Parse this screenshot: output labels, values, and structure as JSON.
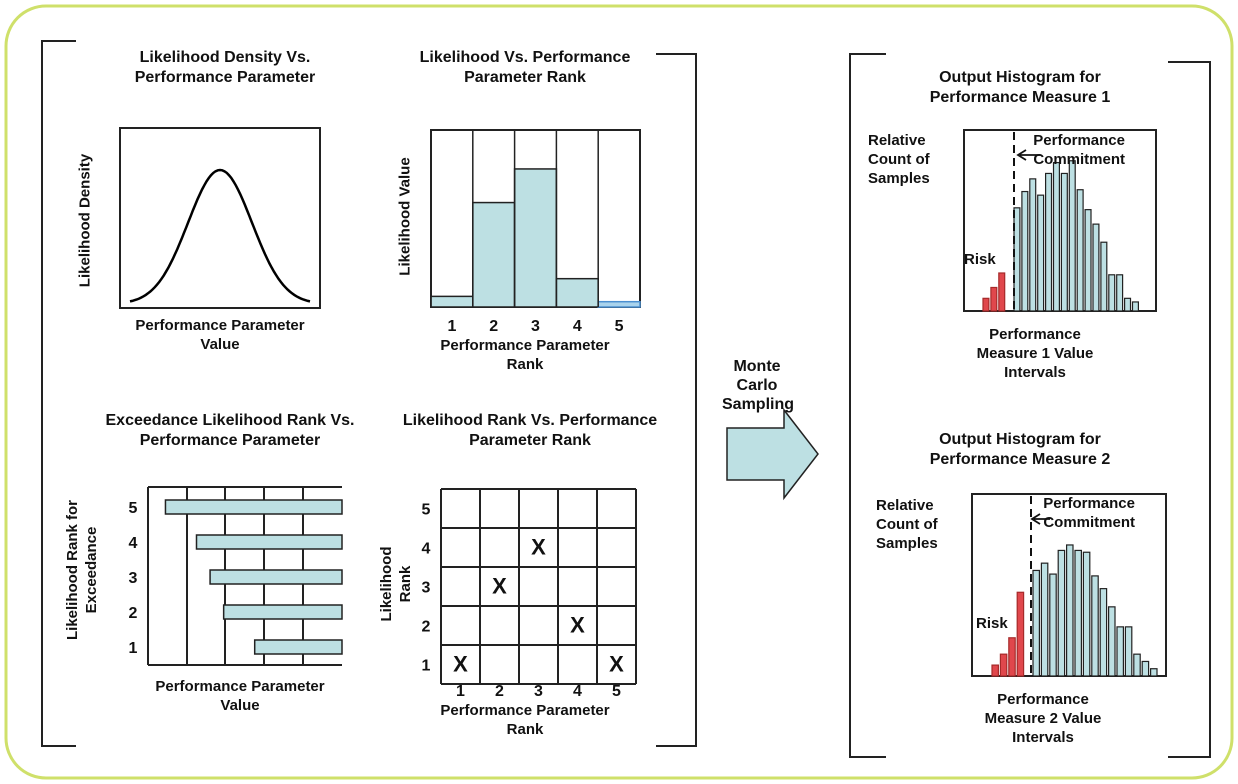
{
  "panels": {
    "density": {
      "title": "Likelihood Density Vs. Performance Parameter",
      "ylabel": "Likelihood  Density",
      "xlabel": "Performance Parameter Value"
    },
    "rank_bar": {
      "title": "Likelihood Vs. Performance Parameter Rank",
      "ylabel": "Likelihood Value",
      "xlabel": "Performance Parameter Rank",
      "ticks": [
        "1",
        "2",
        "3",
        "4",
        "5"
      ]
    },
    "exceedance": {
      "title": "Exceedance Likelihood Rank Vs. Performance Parameter",
      "ylabel": "Likelihood Rank for Exceedance",
      "xlabel": "Performance Parameter Value",
      "ticks": [
        "5",
        "4",
        "3",
        "2",
        "1"
      ]
    },
    "grid": {
      "title": "Likelihood Rank Vs. Performance Parameter Rank",
      "ylabel": "Likelihood Rank",
      "xlabel": "Performance Parameter Rank",
      "xticks": [
        "1",
        "2",
        "3",
        "4",
        "5"
      ],
      "yticks": [
        "5",
        "4",
        "3",
        "2",
        "1"
      ],
      "mark": "X"
    },
    "arrow_label": "Monte Carlo Sampling",
    "hist1": {
      "title": "Output  Histogram for Performance Measure 1",
      "ylabel": "Relative Count of Samples",
      "xlabel": "Performance Measure 1 Value Intervals",
      "risk": "Risk",
      "commitment": "Performance Commitment"
    },
    "hist2": {
      "title": "Output  Histogram for Performance Measure 2",
      "ylabel": "Relative Count of Samples",
      "xlabel": "Performance Measure 2 Value Intervals",
      "risk": "Risk",
      "commitment": "Performance Commitment"
    }
  },
  "chart_data": [
    {
      "type": "line",
      "title": "Likelihood Density Vs. Performance Parameter",
      "shape": "bell curve"
    },
    {
      "type": "bar",
      "title": "Likelihood Vs. Performance Parameter Rank",
      "categories": [
        "1",
        "2",
        "3",
        "4",
        "5"
      ],
      "values": [
        0.06,
        0.59,
        0.78,
        0.16,
        0.03
      ]
    },
    {
      "type": "bar",
      "title": "Exceedance Likelihood Rank Vs. Performance Parameter",
      "categories": [
        "5",
        "4",
        "3",
        "2",
        "1"
      ],
      "values": [
        0.91,
        0.75,
        0.68,
        0.61,
        0.45
      ]
    },
    {
      "type": "scatter",
      "title": "Likelihood Rank Vs. Performance Parameter Rank",
      "x": [
        1,
        2,
        3,
        4,
        5
      ],
      "y": [
        1,
        3,
        4,
        2,
        1
      ]
    },
    {
      "type": "bar",
      "title": "Output  Histogram for Performance Measure 1",
      "risk_values": [
        0.07,
        0.13,
        0.21
      ],
      "values": [
        0.57,
        0.66,
        0.73,
        0.64,
        0.76,
        0.82,
        0.76,
        0.83,
        0.67,
        0.56,
        0.48,
        0.38,
        0.2,
        0.2,
        0.07,
        0.05
      ]
    },
    {
      "type": "bar",
      "title": "Output  Histogram for Performance Measure 2",
      "risk_values": [
        0.06,
        0.12,
        0.21,
        0.46
      ],
      "values": [
        0.58,
        0.62,
        0.56,
        0.69,
        0.72,
        0.69,
        0.68,
        0.55,
        0.48,
        0.38,
        0.27,
        0.27,
        0.12,
        0.08,
        0.04
      ]
    }
  ]
}
